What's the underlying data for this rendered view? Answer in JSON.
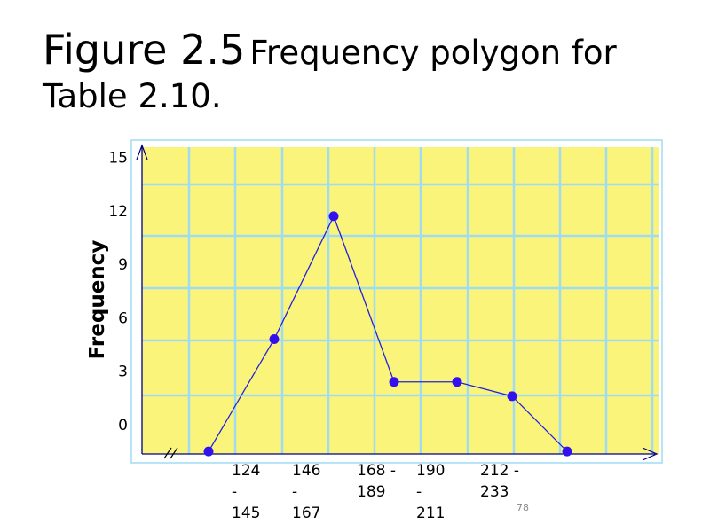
{
  "slide": {
    "title_main": "Figure 2.5",
    "title_rest": "Frequency polygon for Table 2.10.",
    "page_number": "78"
  },
  "colors": {
    "plot_background": "#faf57a",
    "grid": "#9fdcf4",
    "line": "#2222dd",
    "marker": "#3311ee"
  },
  "chart_data": {
    "type": "line",
    "title": "",
    "xlabel": "",
    "ylabel": "Frequency",
    "ylim": [
      -1.5,
      15.5
    ],
    "yticks": [
      0,
      3,
      6,
      9,
      12,
      15
    ],
    "grid": true,
    "axis_break": true,
    "categories": [
      "",
      "124 - 145",
      "146 - 167",
      "168 - 189",
      "190 - 211",
      "212 - 233",
      ""
    ],
    "series": [
      {
        "values": [
          -1.5,
          4.8,
          11.7,
          2.4,
          2.4,
          1.6,
          -1.5
        ]
      }
    ]
  }
}
